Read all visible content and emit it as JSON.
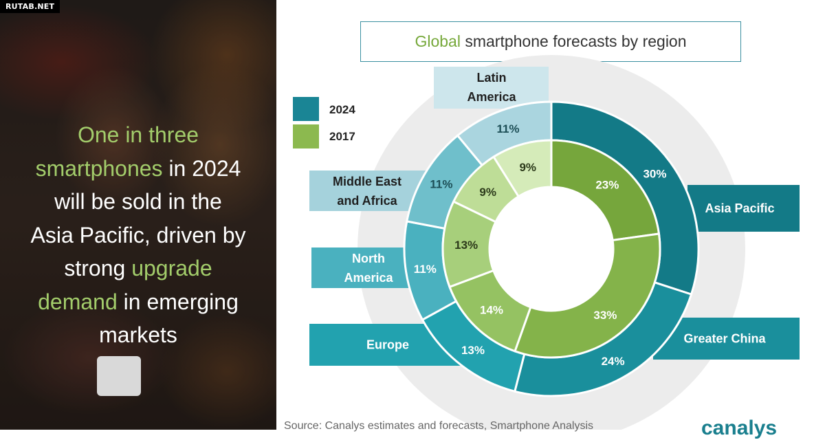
{
  "watermark": "RUTAB.NET",
  "headline": {
    "p1": "One in three",
    "p2": "smartphones",
    "p3": " in 2024",
    "p4": "will be sold in the",
    "p5": "Asia Pacific, driven by",
    "p6": "strong ",
    "p7": "upgrade",
    "p8": "demand",
    "p9": " in emerging",
    "p10": "markets"
  },
  "source": "Source: Canalys estimates and forecasts, Smartphone Analysis",
  "logo": "canalys",
  "colors": {
    "outer": "#1d8c98",
    "inner": "#7fab45",
    "title_accent": "#76a83a",
    "headline_accent": "#a3cd6b"
  },
  "chart_data": {
    "type": "donut",
    "title_accent": "Global",
    "title_rest": " smartphone forecasts by region",
    "legend": [
      {
        "label": "2024",
        "color": "#1a8595"
      },
      {
        "label": "2017",
        "color": "#8cb94f"
      }
    ],
    "regions": [
      "Asia Pacific",
      "Greater China",
      "Europe",
      "North America",
      "Middle East and Africa",
      "Latin America"
    ],
    "series": [
      {
        "name": "2024",
        "ring": "outer",
        "values": [
          30,
          24,
          13,
          11,
          11,
          11
        ],
        "labels": [
          "30%",
          "24%",
          "13%",
          "11%",
          "11%",
          "11%"
        ],
        "colors": [
          "#137a87",
          "#1a8f9c",
          "#22a2af",
          "#4ab1bf",
          "#6fbfcb",
          "#aad5df"
        ]
      },
      {
        "name": "2017",
        "ring": "inner",
        "values": [
          23,
          33,
          14,
          13,
          9,
          9
        ],
        "labels": [
          "23%",
          "33%",
          "14%",
          "13%",
          "9%",
          "9%"
        ],
        "colors": [
          "#76a63c",
          "#84b34a",
          "#95c262",
          "#a7cf7b",
          "#bedd97",
          "#d5ebb9"
        ]
      }
    ],
    "region_labels": [
      {
        "key": "asia-pacific",
        "line1": "Asia Pacific",
        "line2": "",
        "color": "#137a87"
      },
      {
        "key": "greater-china",
        "line1": "Greater China",
        "line2": "",
        "color": "#1a8f9c"
      },
      {
        "key": "europe",
        "line1": "Europe",
        "line2": "",
        "color": "#22a2af"
      },
      {
        "key": "north-america",
        "line1": "North",
        "line2": "America",
        "color": "#4ab1bf"
      },
      {
        "key": "middle-east-africa",
        "line1": "Middle East",
        "line2": "and Africa",
        "color": "#a5d2dc"
      },
      {
        "key": "latin-america",
        "line1": "Latin",
        "line2": "America",
        "color": "#cde6ec"
      }
    ]
  }
}
